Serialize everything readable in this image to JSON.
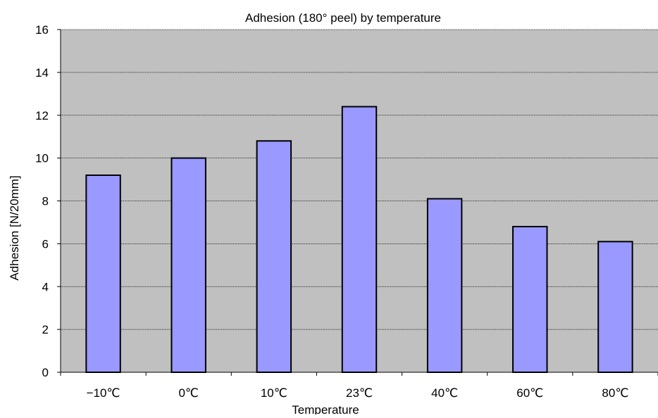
{
  "chart_data": {
    "type": "bar",
    "title": "Adhesion (180° peel) by temperature",
    "xlabel": "Temperature",
    "ylabel": "Adhesion [N/20mm]",
    "categories": [
      "−10℃",
      "0℃",
      "10℃",
      "23℃",
      "40℃",
      "60℃",
      "80℃"
    ],
    "values": [
      9.2,
      10.0,
      10.8,
      12.4,
      8.1,
      6.8,
      6.1
    ],
    "ylim": [
      0,
      16
    ],
    "yticks": [
      0,
      2,
      4,
      6,
      8,
      10,
      12,
      14,
      16
    ],
    "grid": true,
    "legend": "none"
  },
  "colors": {
    "bar_fill": "#9999ff",
    "bar_stroke": "#000000",
    "plot_background": "#c0c0c0",
    "gridline": "#000000"
  }
}
